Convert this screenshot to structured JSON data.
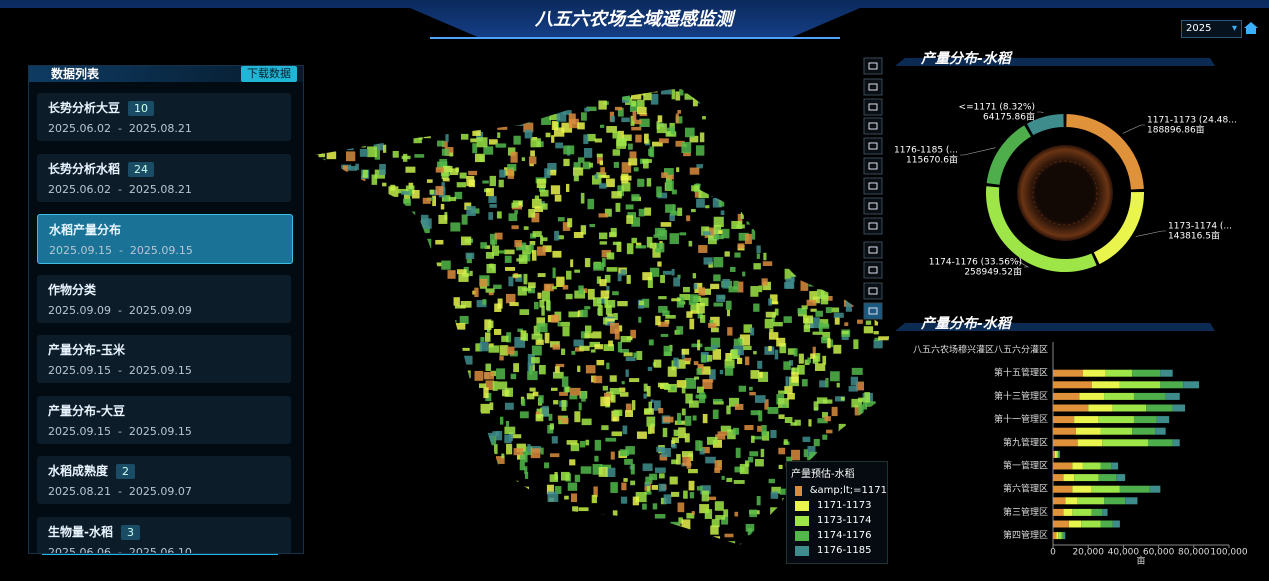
{
  "header": {
    "title": "八五六农场全域遥感监测",
    "year": "2025"
  },
  "data_list": {
    "title": "数据列表",
    "download": "下载数据",
    "items": [
      {
        "name": "长势分析大豆",
        "count": 10,
        "dates": "2025.06.02  -  2025.08.21"
      },
      {
        "name": "长势分析水稻",
        "count": 24,
        "dates": "2025.06.02  -  2025.08.21"
      },
      {
        "name": "水稻产量分布",
        "dates": "2025.09.15  -  2025.09.15"
      },
      {
        "name": "作物分类",
        "dates": "2025.09.09  -  2025.09.09"
      },
      {
        "name": "产量分布-玉米",
        "dates": "2025.09.15  -  2025.09.15"
      },
      {
        "name": "产量分布-大豆",
        "dates": "2025.09.15  -  2025.09.15"
      },
      {
        "name": "水稻成熟度",
        "count": 2,
        "dates": "2025.08.21  -  2025.09.07"
      },
      {
        "name": "生物量-水稻",
        "count": 3,
        "dates": "2025.06.06  -  2025.06.10"
      }
    ]
  },
  "map_legend": {
    "title": "产量预估-水稻",
    "items": [
      {
        "label": "&amp;lt;=1171",
        "color": "#d98c3c"
      },
      {
        "label": "1171-1173",
        "color": "#e9f54c"
      },
      {
        "label": "1173-1174",
        "color": "#9ee548"
      },
      {
        "label": "1174-1176",
        "color": "#52b84a"
      },
      {
        "label": "1176-1185",
        "color": "#3f8c8c"
      }
    ]
  },
  "chart_data": [
    {
      "type": "pie",
      "title": "产量分布-水稻",
      "categories": [
        "1171-1173 (24.48...",
        "1173-1174 (...",
        "1174-1176 (33.56%)",
        "1176-1185 (...",
        "<=1171 (8.32%)"
      ],
      "values": [
        188896.86,
        143816.5,
        258949.52,
        115670.6,
        64175.86
      ],
      "value_labels": [
        "188896.86亩",
        "143816.5亩",
        "258949.52亩",
        "115670.6亩",
        "64175.86亩"
      ],
      "colors": [
        "#e0923a",
        "#e9f54c",
        "#9ee548",
        "#4fae4c",
        "#3f8c8c"
      ]
    },
    {
      "type": "stacked_barh",
      "title": "产量分布-水稻",
      "xlabel": "亩",
      "categories": [
        "八五六农场穆兴灌区八五六分灌区",
        null,
        "第十五管理区",
        null,
        "第十三管理区",
        null,
        "第十一管理区",
        null,
        "第九管理区",
        null,
        "第一管理区",
        null,
        "第六管理区",
        null,
        "第三管理区",
        null,
        "第四管理区"
      ],
      "series": [
        {
          "color": "#e0923a",
          "values": [
            0,
            0,
            17000,
            22000,
            15000,
            20000,
            12000,
            13000,
            14000,
            1000,
            11000,
            6000,
            11000,
            7000,
            6000,
            9000,
            2000
          ]
        },
        {
          "color": "#e9f54c",
          "values": [
            0,
            0,
            13000,
            16000,
            14000,
            14000,
            14000,
            14000,
            14000,
            1000,
            6000,
            6000,
            11000,
            7000,
            5000,
            7000,
            1000
          ]
        },
        {
          "color": "#9ee548",
          "values": [
            0,
            0,
            15000,
            23000,
            17000,
            19000,
            20000,
            18000,
            26000,
            1000,
            10000,
            14000,
            16000,
            15000,
            11000,
            11000,
            2000
          ]
        },
        {
          "color": "#4fae4c",
          "values": [
            0,
            0,
            16000,
            13000,
            18000,
            15000,
            13000,
            13000,
            14000,
            500,
            6000,
            10000,
            17000,
            12000,
            6000,
            7000,
            1000
          ]
        },
        {
          "color": "#3f8c8c",
          "values": [
            0,
            0,
            7000,
            9000,
            8000,
            7000,
            7000,
            6000,
            4000,
            500,
            4000,
            5000,
            6000,
            7000,
            3000,
            4000,
            1000
          ]
        }
      ],
      "xlim": [
        0,
        100000
      ],
      "xticks": [
        0,
        {
          "value": 20000,
          "label": "20,000"
        },
        {
          "value": 40000,
          "label": "40,000"
        },
        {
          "value": 60000,
          "label": "60,000"
        },
        {
          "value": 80000,
          "label": "80,000"
        },
        {
          "value": 100000,
          "label": "100,000"
        }
      ]
    }
  ]
}
